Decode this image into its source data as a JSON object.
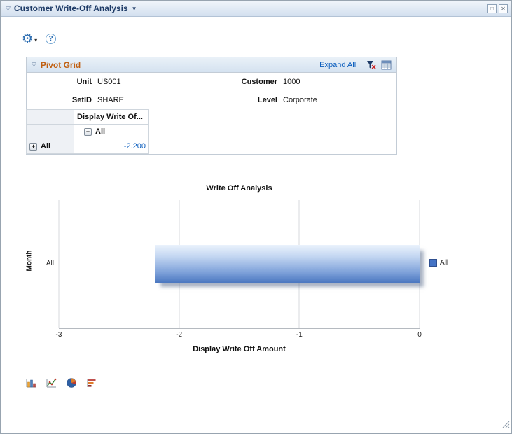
{
  "window": {
    "title": "Customer Write-Off Analysis"
  },
  "icons": {
    "gear": "⚙",
    "gear_caret": "▾",
    "help": "?",
    "section_collapse": "▽",
    "pivot_collapse": "▽",
    "title_caret": "▼",
    "maximize": "□",
    "close": "✕"
  },
  "pivot_grid": {
    "title": "Pivot Grid",
    "expand_all_label": "Expand All",
    "separator": "|",
    "filters": [
      {
        "label": "Unit",
        "value": "US001"
      },
      {
        "label": "Customer",
        "value": "1000"
      },
      {
        "label": "SetID",
        "value": "SHARE"
      },
      {
        "label": "Level",
        "value": "Corporate"
      }
    ],
    "column_header": "Display Write Of...",
    "column_group_label": "All",
    "row_group_label": "All",
    "cell_value": "-2.200",
    "expand_symbol": "+"
  },
  "chart_data": {
    "type": "bar",
    "orientation": "horizontal",
    "title": "Write Off Analysis",
    "categories": [
      "All"
    ],
    "series": [
      {
        "name": "All",
        "values": [
          -2.2
        ]
      }
    ],
    "xlabel": "Display Write Off Amount",
    "ylabel": "Month",
    "xlim": [
      -3,
      0
    ],
    "xticks": [
      -3,
      -2,
      -1,
      0
    ],
    "legend": [
      "All"
    ],
    "legend_position": "right",
    "bar_color": "#4a77c0",
    "grid": true
  },
  "chart_type_buttons": [
    "column-chart",
    "line-chart",
    "pie-chart",
    "horizontal-bar-chart"
  ]
}
